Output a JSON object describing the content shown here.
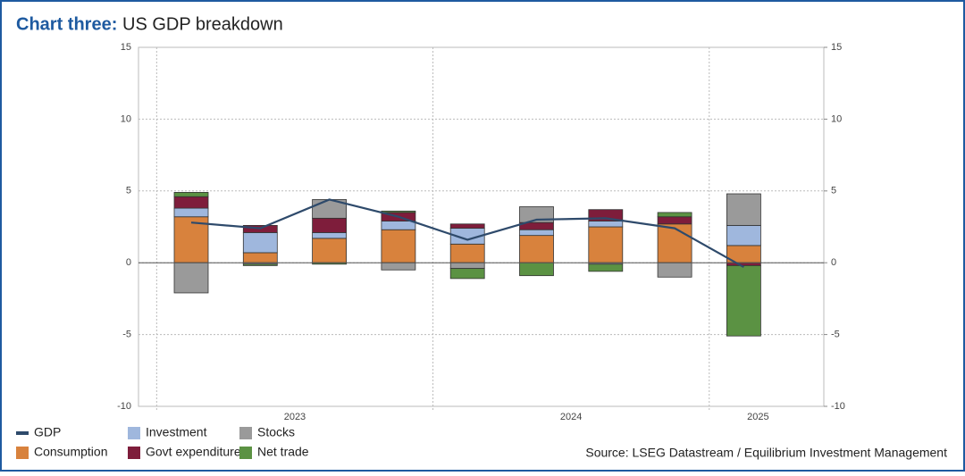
{
  "chart_data": {
    "type": "bar",
    "stacked": true,
    "title_prefix": "Chart three:",
    "title": "US GDP breakdown",
    "source": "Source: LSEG Datastream / Equilibrium Investment Management",
    "categories": [
      "2023",
      null,
      null,
      null,
      "2024",
      null,
      null,
      null,
      "2025"
    ],
    "series": [
      {
        "name": "GDP",
        "type": "line",
        "color": "#2e4a6b",
        "values": [
          2.8,
          2.4,
          4.4,
          3.2,
          1.6,
          3.0,
          3.1,
          2.4,
          -0.3
        ]
      },
      {
        "name": "Consumption",
        "color": "#d8823d",
        "values": [
          3.2,
          0.7,
          1.7,
          2.3,
          1.3,
          1.9,
          2.5,
          2.7,
          1.2
        ]
      },
      {
        "name": "Investment",
        "color": "#9fb7dd",
        "values": [
          0.6,
          1.4,
          0.4,
          0.6,
          1.1,
          0.4,
          0.4,
          0,
          1.4
        ]
      },
      {
        "name": "Govt expenditure",
        "color": "#7e1d3b",
        "values": [
          0.8,
          0.5,
          1.0,
          0.6,
          0.3,
          0.5,
          0.8,
          0.5,
          -0.2
        ]
      },
      {
        "name": "Stocks",
        "color": "#9a9a9a",
        "values": [
          -2.1,
          -0.1,
          1.3,
          -0.5,
          -0.4,
          1.1,
          -0.1,
          -1.0,
          2.2
        ]
      },
      {
        "name": "Net trade",
        "color": "#5b9243",
        "values": [
          0.3,
          -0.1,
          -0.1,
          0.1,
          -0.7,
          -0.9,
          -0.5,
          0.3,
          -4.9
        ]
      }
    ],
    "ylim": [
      -10,
      15
    ],
    "yticks": [
      -10,
      -5,
      0,
      5,
      10,
      15
    ],
    "y2lim": [
      -10,
      15
    ],
    "y2ticks": [
      -10,
      -5,
      0,
      5,
      10,
      15
    ],
    "grid": true
  }
}
